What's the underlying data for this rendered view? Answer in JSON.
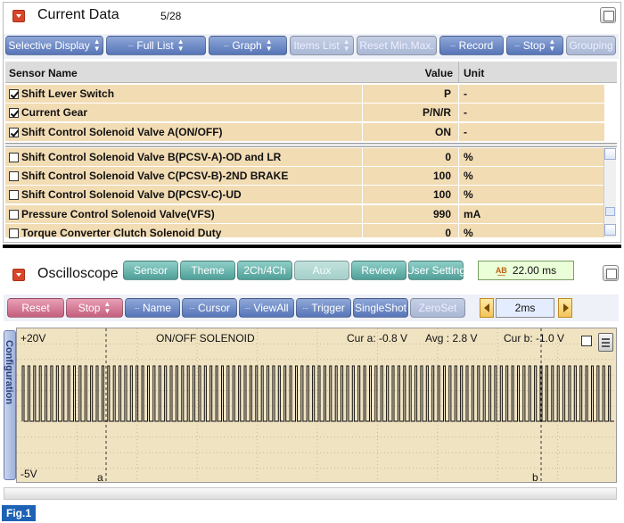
{
  "current_data": {
    "title": "Current Data",
    "count": "5/28",
    "toolbar": [
      {
        "label": "Selective Display",
        "style": "blue",
        "arrows": true,
        "dots": false
      },
      {
        "label": "Full List",
        "style": "blue",
        "arrows": true,
        "dots": true
      },
      {
        "label": "Graph",
        "style": "blue",
        "arrows": true,
        "dots": true
      },
      {
        "label": "Items List",
        "style": "blue-dis",
        "arrows": true,
        "dots": false
      },
      {
        "label": "Reset Min.Max.",
        "style": "blue-dis",
        "arrows": false,
        "dots": false
      },
      {
        "label": "Record",
        "style": "blue",
        "arrows": false,
        "dots": true
      },
      {
        "label": "Stop",
        "style": "blue",
        "arrows": true,
        "dots": true
      },
      {
        "label": "Grouping",
        "style": "blue-dis",
        "arrows": false,
        "dots": false
      }
    ],
    "columns": {
      "name": "Sensor Name",
      "value": "Value",
      "unit": "Unit"
    },
    "rows": [
      {
        "checked": true,
        "name": "Shift Lever Switch",
        "value": "P",
        "unit": "-"
      },
      {
        "checked": true,
        "name": "Current Gear",
        "value": "P/N/R",
        "unit": "-"
      },
      {
        "checked": true,
        "name": "Shift Control Solenoid Valve A(ON/OFF)",
        "value": "ON",
        "unit": "-"
      },
      {
        "checked": false,
        "name": "Shift Control Solenoid Valve B(PCSV-A)-OD and LR",
        "value": "0",
        "unit": "%"
      },
      {
        "checked": false,
        "name": "Shift Control Solenoid Valve C(PCSV-B)-2ND BRAKE",
        "value": "100",
        "unit": "%"
      },
      {
        "checked": false,
        "name": "Shift Control Solenoid Valve D(PCSV-C)-UD",
        "value": "100",
        "unit": "%"
      },
      {
        "checked": false,
        "name": "Pressure Control Solenoid Valve(VFS)",
        "value": "990",
        "unit": "mA"
      },
      {
        "checked": false,
        "name": "Torque Converter Clutch Solenoid Duty",
        "value": "0",
        "unit": "%"
      }
    ]
  },
  "oscilloscope": {
    "title": "Oscilloscope",
    "top_buttons": [
      {
        "label": "Sensor",
        "style": "teal"
      },
      {
        "label": "Theme",
        "style": "teal"
      },
      {
        "label": "2Ch/4Ch",
        "style": "teal"
      },
      {
        "label": "Aux",
        "style": "teal-dis"
      },
      {
        "label": "Review",
        "style": "teal"
      },
      {
        "label": "User Setting",
        "style": "teal"
      }
    ],
    "time_readout": "22.00 ms",
    "bottom_buttons": [
      {
        "label": "Reset",
        "style": "pink",
        "arrows": false,
        "dots": false
      },
      {
        "label": "Stop",
        "style": "pink",
        "arrows": true,
        "dots": false
      },
      {
        "label": "Name",
        "style": "blue",
        "arrows": false,
        "dots": true
      },
      {
        "label": "Cursor",
        "style": "blue",
        "arrows": false,
        "dots": true
      },
      {
        "label": "ViewAll",
        "style": "blue",
        "arrows": false,
        "dots": true
      },
      {
        "label": "Trigger",
        "style": "blue",
        "arrows": false,
        "dots": true
      },
      {
        "label": "SingleShot",
        "style": "blue",
        "arrows": false,
        "dots": false
      },
      {
        "label": "ZeroSet",
        "style": "blue-dis",
        "arrows": false,
        "dots": false
      }
    ],
    "time_div": "2ms",
    "scope": {
      "top_label": "+20V",
      "bottom_label": "-5V",
      "signal_name": "ON/OFF SOLENOID",
      "cursor_a": "Cur a: -0.8 V",
      "average": "Avg : 2.8 V",
      "cursor_b": "Cur b: -1.0 V",
      "marker_a": "a",
      "marker_b": "b",
      "side_tab": "Configuration",
      "pulse_count": 104
    }
  },
  "figure_label": "Fig.1"
}
